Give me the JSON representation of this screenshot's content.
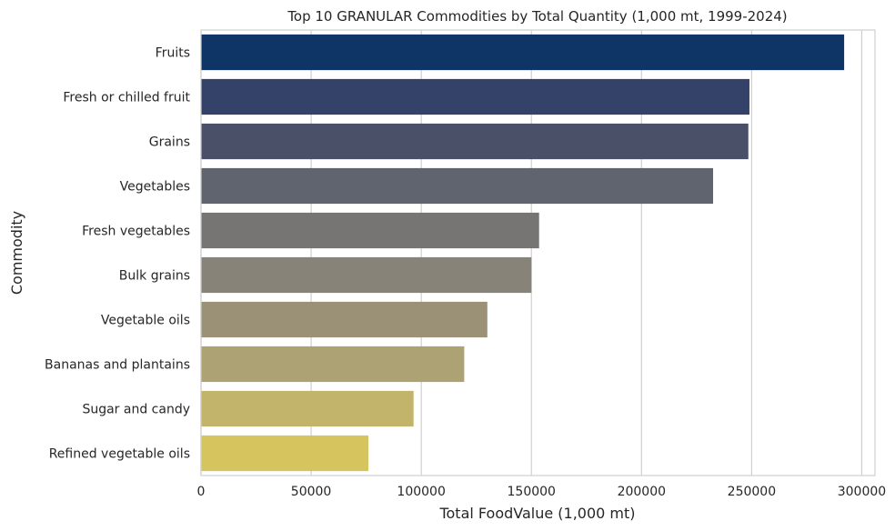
{
  "chart_data": {
    "type": "bar",
    "orientation": "horizontal",
    "title": "Top 10 GRANULAR Commodities by Total Quantity (1,000 mt, 1999-2024)",
    "xlabel": "Total FoodValue (1,000 mt)",
    "ylabel": "Commodity",
    "xlim": [
      0,
      306000
    ],
    "xticks": [
      0,
      50000,
      100000,
      150000,
      200000,
      250000,
      300000
    ],
    "xtick_labels": [
      "0",
      "50000",
      "100000",
      "150000",
      "200000",
      "250000",
      "300000"
    ],
    "grid": "vertical",
    "categories": [
      "Fruits",
      "Fresh or chilled fruit",
      "Grains",
      "Vegetables",
      "Fresh vegetables",
      "Bulk grains",
      "Vegetable oils",
      "Bananas and plantains",
      "Sugar and candy",
      "Refined vegetable oils"
    ],
    "values": [
      292000,
      249000,
      248500,
      232500,
      153500,
      150000,
      130000,
      119500,
      96500,
      76000
    ],
    "colors": [
      "#0f3466",
      "#34426a",
      "#4a5068",
      "#60646e",
      "#767573",
      "#888379",
      "#9a9177",
      "#ada274",
      "#c2b46a",
      "#d6c55e"
    ]
  }
}
